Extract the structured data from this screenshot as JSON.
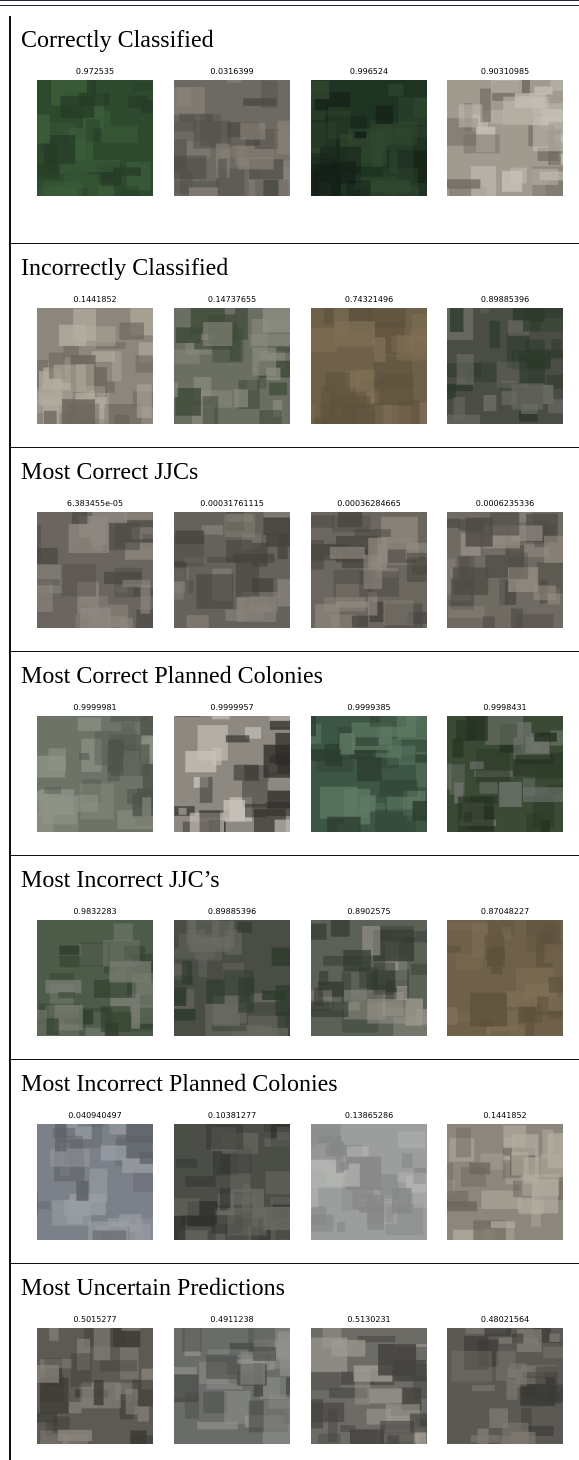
{
  "sections": [
    {
      "title": "Correctly Classified",
      "tiles": [
        {
          "score": "0.972535",
          "image": "dark green field texture",
          "palette": [
            "#2e4a2e",
            "#3c5e3a",
            "#263c27"
          ]
        },
        {
          "score": "0.0316399",
          "image": "dense rooftops with colored roofs",
          "palette": [
            "#6d6a63",
            "#8a8278",
            "#4c4a45"
          ]
        },
        {
          "score": "0.996524",
          "image": "tree canopy",
          "palette": [
            "#1f3323",
            "#30482f",
            "#141f17"
          ]
        },
        {
          "score": "0.90310985",
          "image": "white building blocks",
          "palette": [
            "#a09a8f",
            "#c5c0b6",
            "#6e6960"
          ]
        }
      ]
    },
    {
      "title": "Incorrectly Classified",
      "tiles": [
        {
          "score": "0.1441852",
          "image": "large flat roof",
          "palette": [
            "#8c877c",
            "#b3ada0",
            "#6a655b"
          ]
        },
        {
          "score": "0.14737655",
          "image": "buildings and trees",
          "palette": [
            "#6b6e62",
            "#8f8f84",
            "#3e4a38"
          ]
        },
        {
          "score": "0.74321496",
          "image": "brown water surface",
          "palette": [
            "#6e6049",
            "#7f6f55",
            "#5f523d"
          ]
        },
        {
          "score": "0.89885396",
          "image": "dense settlement with trees",
          "palette": [
            "#4a4d46",
            "#6c6c66",
            "#2c3a2b"
          ]
        }
      ]
    },
    {
      "title": "Most Correct JJCs",
      "tiles": [
        {
          "score": "6.383455e-05",
          "image": "dense informal settlement",
          "palette": [
            "#6a665f",
            "#8e8880",
            "#4b4843"
          ]
        },
        {
          "score": "0.00031761115",
          "image": "dense informal settlement",
          "palette": [
            "#65625b",
            "#89847b",
            "#45423d"
          ]
        },
        {
          "score": "0.00036284665",
          "image": "dense informal settlement",
          "palette": [
            "#6b675f",
            "#918a80",
            "#47443f"
          ]
        },
        {
          "score": "0.0006235336",
          "image": "dense informal settlement",
          "palette": [
            "#6f6b63",
            "#958e85",
            "#4d4a44"
          ]
        }
      ]
    },
    {
      "title": "Most Correct Planned Colonies",
      "tiles": [
        {
          "score": "0.9999981",
          "image": "open ground with roof",
          "palette": [
            "#6e7368",
            "#8f9488",
            "#4e5449"
          ]
        },
        {
          "score": "0.9999957",
          "image": "tall white building",
          "palette": [
            "#8d8880",
            "#c8c3ba",
            "#2e2c28"
          ]
        },
        {
          "score": "0.9999385",
          "image": "green field with path",
          "palette": [
            "#3d5545",
            "#5e7a63",
            "#2b3d30"
          ]
        },
        {
          "score": "0.9998431",
          "image": "highway crossing",
          "palette": [
            "#3a4a35",
            "#6f746d",
            "#263222"
          ]
        }
      ]
    },
    {
      "title": "Most Incorrect JJC’s",
      "tiles": [
        {
          "score": "0.9832283",
          "image": "trees and rooftops",
          "palette": [
            "#4d5c48",
            "#7a7d74",
            "#2f3f2c"
          ]
        },
        {
          "score": "0.89885396",
          "image": "dense settlement with trees",
          "palette": [
            "#4a4d46",
            "#6c6c66",
            "#2c3a2b"
          ]
        },
        {
          "score": "0.8902575",
          "image": "street with buildings",
          "palette": [
            "#5c6157",
            "#9a978e",
            "#333a30"
          ]
        },
        {
          "score": "0.87048227",
          "image": "brown water surface",
          "palette": [
            "#6e6049",
            "#7f6f55",
            "#5f523d"
          ]
        }
      ]
    },
    {
      "title": "Most Incorrect Planned Colonies",
      "tiles": [
        {
          "score": "0.040940497",
          "image": "grey scattered settlement",
          "palette": [
            "#7c8088",
            "#9a9ea5",
            "#5e6268"
          ]
        },
        {
          "score": "0.10381277",
          "image": "dark market area",
          "palette": [
            "#4b4d47",
            "#6a6b64",
            "#2f312c"
          ]
        },
        {
          "score": "0.13865286",
          "image": "pale open ground",
          "palette": [
            "#9c9e9e",
            "#b3b4b2",
            "#858786"
          ]
        },
        {
          "score": "0.1441852",
          "image": "large flat roof",
          "palette": [
            "#8c877c",
            "#b3ada0",
            "#6a655b"
          ]
        }
      ]
    },
    {
      "title": "Most Uncertain Predictions",
      "tiles": [
        {
          "score": "0.5015277",
          "image": "buildings with road",
          "palette": [
            "#5d5a54",
            "#8c877e",
            "#3c3a35"
          ]
        },
        {
          "score": "0.4911238",
          "image": "grey roofs and courtyard",
          "palette": [
            "#6a6c6a",
            "#8f908c",
            "#474946"
          ]
        },
        {
          "score": "0.5130231",
          "image": "mixed buildings",
          "palette": [
            "#6c6b66",
            "#a19d94",
            "#43423e"
          ]
        },
        {
          "score": "0.48021564",
          "image": "dense rooftops",
          "palette": [
            "#5b5954",
            "#7f7b73",
            "#3a3935"
          ]
        }
      ]
    }
  ]
}
